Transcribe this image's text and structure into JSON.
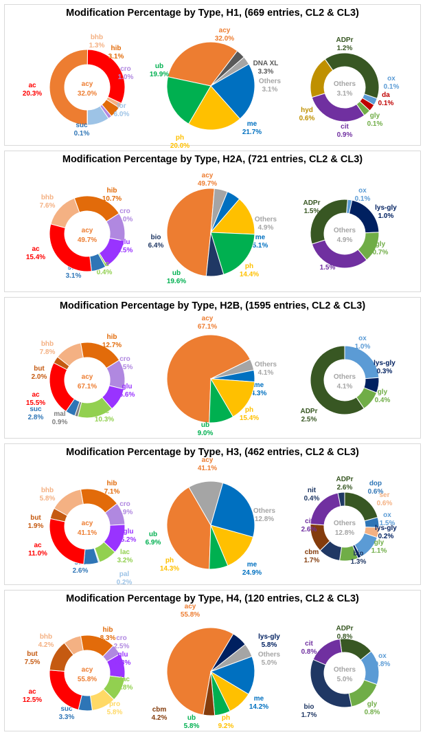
{
  "chart_data": [
    {
      "title": "Modification Percentage by Type, H1, (669 entries, CL2 & CL3)",
      "charts": [
        {
          "type": "donut",
          "center_name": "acy",
          "center_value": "32.0%",
          "center_color": "#ed7d31",
          "slices": [
            {
              "name": "acy",
              "value": 32.0,
              "label": "",
              "color": "#ed7d31"
            },
            {
              "name": "ac",
              "value": 20.3,
              "label": "20.3%",
              "color": "#ff0000"
            },
            {
              "name": "bhb",
              "value": 1.3,
              "label": "1.3%",
              "color": "#f4b183"
            },
            {
              "name": "hib",
              "value": 3.1,
              "label": "3.1%",
              "color": "#e26b0a"
            },
            {
              "name": "cro",
              "value": 1.0,
              "label": "1.0%",
              "color": "#b088e0"
            },
            {
              "name": "for",
              "value": 6.0,
              "label": "6.0%",
              "color": "#9dc3e6"
            },
            {
              "name": "suc",
              "value": 0.1,
              "label": "0.1%",
              "color": "#2e75b6"
            }
          ]
        },
        {
          "type": "pie",
          "slices": [
            {
              "name": "acy",
              "value": 32.0,
              "label": "32.0%",
              "color": "#ed7d31"
            },
            {
              "name": "DNA XL",
              "value": 3.3,
              "label": "3.3%",
              "color": "#595959"
            },
            {
              "name": "Others",
              "value": 3.1,
              "label": "3.1%",
              "color": "#a5a5a5"
            },
            {
              "name": "me",
              "value": 21.7,
              "label": "21.7%",
              "color": "#0070c0"
            },
            {
              "name": "ph",
              "value": 20.0,
              "label": "20.0%",
              "color": "#ffc000"
            },
            {
              "name": "ub",
              "value": 19.9,
              "label": "19.9%",
              "color": "#00b050"
            }
          ]
        },
        {
          "type": "donut",
          "center_name": "Others",
          "center_value": "3.1%",
          "center_color": "#a5a5a5",
          "slices": [
            {
              "name": "ADPr",
              "value": 1.2,
              "label": "1.2%",
              "color": "#385723"
            },
            {
              "name": "ox",
              "value": 0.1,
              "label": "0.1%",
              "color": "#5b9bd5"
            },
            {
              "name": "da",
              "value": 0.1,
              "label": "0.1%",
              "color": "#c00000"
            },
            {
              "name": "gly",
              "value": 0.1,
              "label": "0.1%",
              "color": "#70ad47"
            },
            {
              "name": "cit",
              "value": 0.9,
              "label": "0.9%",
              "color": "#7030a0"
            },
            {
              "name": "hyd",
              "value": 0.6,
              "label": "0.6%",
              "color": "#bf9000"
            }
          ]
        }
      ]
    },
    {
      "title": "Modification Percentage by Type, H2A, (721 entries, CL2 & CL3)",
      "charts": [
        {
          "type": "donut",
          "center_name": "acy",
          "center_value": "49.7%",
          "center_color": "#ed7d31",
          "slices": [
            {
              "name": "hib",
              "value": 10.7,
              "label": "10.7%",
              "color": "#e26b0a"
            },
            {
              "name": "cro",
              "value": 6.0,
              "label": "6.0%",
              "color": "#b088e0"
            },
            {
              "name": "glu",
              "value": 6.5,
              "label": "6.5%",
              "color": "#9933ff"
            },
            {
              "name": "lac",
              "value": 0.4,
              "label": "0.4%",
              "color": "#92d050"
            },
            {
              "name": "suc",
              "value": 3.1,
              "label": "3.1%",
              "color": "#2e75b6"
            },
            {
              "name": "ac",
              "value": 15.4,
              "label": "15.4%",
              "color": "#ff0000"
            },
            {
              "name": "bhb",
              "value": 7.6,
              "label": "7.6%",
              "color": "#f4b183"
            }
          ]
        },
        {
          "type": "pie",
          "slices": [
            {
              "name": "acy",
              "value": 49.7,
              "label": "49.7%",
              "color": "#ed7d31"
            },
            {
              "name": "Others",
              "value": 4.9,
              "label": "4.9%",
              "color": "#a5a5a5"
            },
            {
              "name": "me",
              "value": 5.1,
              "label": "5.1%",
              "color": "#0070c0"
            },
            {
              "name": "ph",
              "value": 14.4,
              "label": "14.4%",
              "color": "#ffc000"
            },
            {
              "name": "ub",
              "value": 19.6,
              "label": "19.6%",
              "color": "#00b050"
            },
            {
              "name": "bio",
              "value": 6.4,
              "label": "6.4%",
              "color": "#203864"
            }
          ]
        },
        {
          "type": "donut",
          "center_name": "Others",
          "center_value": "4.9%",
          "center_color": "#a5a5a5",
          "slices": [
            {
              "name": "ox",
              "value": 0.1,
              "label": "0.1%",
              "color": "#5b9bd5"
            },
            {
              "name": "lys-gly",
              "value": 1.0,
              "label": "1.0%",
              "color": "#002060"
            },
            {
              "name": "gly",
              "value": 0.7,
              "label": "0.7%",
              "color": "#70ad47"
            },
            {
              "name": "cit",
              "value": 1.5,
              "label": "1.5%",
              "color": "#7030a0"
            },
            {
              "name": "ADPr",
              "value": 1.5,
              "label": "1.5%",
              "color": "#385723"
            }
          ]
        }
      ]
    },
    {
      "title": "Modification Percentage by Type, H2B, (1595 entries, CL2 & CL3)",
      "charts": [
        {
          "type": "donut",
          "center_name": "acy",
          "center_value": "67.1%",
          "center_color": "#ed7d31",
          "slices": [
            {
              "name": "hib",
              "value": 12.7,
              "label": "12.7%",
              "color": "#e26b0a"
            },
            {
              "name": "cro",
              "value": 8.5,
              "label": "8.5%",
              "color": "#b088e0"
            },
            {
              "name": "glu",
              "value": 6.6,
              "label": "6.6%",
              "color": "#9933ff"
            },
            {
              "name": "lac",
              "value": 10.3,
              "label": "10.3%",
              "color": "#92d050"
            },
            {
              "name": "mal",
              "value": 0.9,
              "label": "0.9%",
              "color": "#7f7f7f"
            },
            {
              "name": "suc",
              "value": 2.8,
              "label": "2.8%",
              "color": "#2e75b6"
            },
            {
              "name": "ac",
              "value": 15.5,
              "label": "15.5%",
              "color": "#ff0000"
            },
            {
              "name": "but",
              "value": 2.0,
              "label": "2.0%",
              "color": "#c55a11"
            },
            {
              "name": "bhb",
              "value": 7.8,
              "label": "7.8%",
              "color": "#f4b183"
            }
          ]
        },
        {
          "type": "pie",
          "slices": [
            {
              "name": "acy",
              "value": 67.1,
              "label": "67.1%",
              "color": "#ed7d31"
            },
            {
              "name": "Others",
              "value": 4.1,
              "label": "4.1%",
              "color": "#a5a5a5"
            },
            {
              "name": "me",
              "value": 4.3,
              "label": "4.3%",
              "color": "#0070c0"
            },
            {
              "name": "ph",
              "value": 15.4,
              "label": "15.4%",
              "color": "#ffc000"
            },
            {
              "name": "ub",
              "value": 9.0,
              "label": "9.0%",
              "color": "#00b050"
            }
          ]
        },
        {
          "type": "donut",
          "center_name": "Others",
          "center_value": "4.1%",
          "center_color": "#a5a5a5",
          "slices": [
            {
              "name": "ox",
              "value": 1.0,
              "label": "1.0%",
              "color": "#5b9bd5"
            },
            {
              "name": "lys-gly",
              "value": 0.3,
              "label": "0.3%",
              "color": "#002060"
            },
            {
              "name": "gly",
              "value": 0.4,
              "label": "0.4%",
              "color": "#70ad47"
            },
            {
              "name": "ADPr",
              "value": 2.5,
              "label": "2.5%",
              "color": "#385723"
            }
          ]
        }
      ]
    },
    {
      "title": "Modification Percentage by Type, H3, (462 entries, CL2 & CL3)",
      "charts": [
        {
          "type": "donut",
          "center_name": "acy",
          "center_value": "41.1%",
          "center_color": "#ed7d31",
          "slices": [
            {
              "name": "hib",
              "value": 7.1,
              "label": "7.1%",
              "color": "#e26b0a"
            },
            {
              "name": "cro",
              "value": 3.9,
              "label": "3.9%",
              "color": "#b088e0"
            },
            {
              "name": "glu",
              "value": 5.2,
              "label": "5.2%",
              "color": "#9933ff"
            },
            {
              "name": "lac",
              "value": 3.2,
              "label": "3.2%",
              "color": "#92d050"
            },
            {
              "name": "pal",
              "value": 0.2,
              "label": "0.2%",
              "color": "#9dc3e6"
            },
            {
              "name": "suc",
              "value": 2.6,
              "label": "2.6%",
              "color": "#2e75b6"
            },
            {
              "name": "ac",
              "value": 11.0,
              "label": "11.0%",
              "color": "#ff0000"
            },
            {
              "name": "but",
              "value": 1.9,
              "label": "1.9%",
              "color": "#c55a11"
            },
            {
              "name": "bhb",
              "value": 5.8,
              "label": "5.8%",
              "color": "#f4b183"
            }
          ]
        },
        {
          "type": "pie",
          "slices": [
            {
              "name": "acy",
              "value": 41.1,
              "label": "41.1%",
              "color": "#ed7d31"
            },
            {
              "name": "Others",
              "value": 12.8,
              "label": "12.8%",
              "color": "#a5a5a5"
            },
            {
              "name": "me",
              "value": 24.9,
              "label": "24.9%",
              "color": "#0070c0"
            },
            {
              "name": "ph",
              "value": 14.3,
              "label": "14.3%",
              "color": "#ffc000"
            },
            {
              "name": "ub",
              "value": 6.9,
              "label": "6.9%",
              "color": "#00b050"
            }
          ]
        },
        {
          "type": "donut",
          "center_name": "Others",
          "center_value": "12.8%",
          "center_color": "#a5a5a5",
          "slices": [
            {
              "name": "ADPr",
              "value": 2.6,
              "label": "2.6%",
              "color": "#385723"
            },
            {
              "name": "dop",
              "value": 0.6,
              "label": "0.6%",
              "color": "#2e75b6"
            },
            {
              "name": "ser",
              "value": 0.6,
              "label": "0.6%",
              "color": "#f4b183"
            },
            {
              "name": "ox",
              "value": 1.5,
              "label": "1.5%",
              "color": "#5b9bd5"
            },
            {
              "name": "lys-gly",
              "value": 0.2,
              "label": "0.2%",
              "color": "#002060"
            },
            {
              "name": "gly",
              "value": 1.1,
              "label": "1.1%",
              "color": "#70ad47"
            },
            {
              "name": "bio",
              "value": 1.3,
              "label": "1.3%",
              "color": "#203864"
            },
            {
              "name": "cbm",
              "value": 1.7,
              "label": "1.7%",
              "color": "#843c0c"
            },
            {
              "name": "cit",
              "value": 2.6,
              "label": "2.6%",
              "color": "#7030a0"
            },
            {
              "name": "nit",
              "value": 0.4,
              "label": "0.4%",
              "color": "#1f3864"
            }
          ]
        }
      ]
    },
    {
      "title": "Modification Percentage by Type, H4, (120 entries, CL2 & CL3)",
      "charts": [
        {
          "type": "donut",
          "center_name": "acy",
          "center_value": "55.8%",
          "center_color": "#ed7d31",
          "slices": [
            {
              "name": "hib",
              "value": 8.3,
              "label": "8.3%",
              "color": "#e26b0a"
            },
            {
              "name": "cro",
              "value": 2.5,
              "label": "2.5%",
              "color": "#b088e0"
            },
            {
              "name": "glu",
              "value": 5.8,
              "label": "5.8%",
              "color": "#9933ff"
            },
            {
              "name": "lac",
              "value": 5.8,
              "label": "5.8%",
              "color": "#92d050"
            },
            {
              "name": "pro",
              "value": 5.8,
              "label": "5.8%",
              "color": "#ffd966"
            },
            {
              "name": "suc",
              "value": 3.3,
              "label": "3.3%",
              "color": "#2e75b6"
            },
            {
              "name": "ac",
              "value": 12.5,
              "label": "12.5%",
              "color": "#ff0000"
            },
            {
              "name": "but",
              "value": 7.5,
              "label": "7.5%",
              "color": "#c55a11"
            },
            {
              "name": "bhb",
              "value": 4.2,
              "label": "4.2%",
              "color": "#f4b183"
            }
          ]
        },
        {
          "type": "pie",
          "slices": [
            {
              "name": "acy",
              "value": 55.8,
              "label": "55.8%",
              "color": "#ed7d31"
            },
            {
              "name": "lys-gly",
              "value": 5.8,
              "label": "5.8%",
              "color": "#002060"
            },
            {
              "name": "Others",
              "value": 5.0,
              "label": "5.0%",
              "color": "#a5a5a5"
            },
            {
              "name": "me",
              "value": 14.2,
              "label": "14.2%",
              "color": "#0070c0"
            },
            {
              "name": "ph",
              "value": 9.2,
              "label": "9.2%",
              "color": "#ffc000"
            },
            {
              "name": "ub",
              "value": 5.8,
              "label": "5.8%",
              "color": "#00b050"
            },
            {
              "name": "cbm",
              "value": 4.2,
              "label": "4.2%",
              "color": "#843c0c"
            }
          ]
        },
        {
          "type": "donut",
          "center_name": "Others",
          "center_value": "5.0%",
          "center_color": "#a5a5a5",
          "slices": [
            {
              "name": "ADPr",
              "value": 0.8,
              "label": "0.8%",
              "color": "#385723"
            },
            {
              "name": "ox",
              "value": 0.8,
              "label": "0.8%",
              "color": "#5b9bd5"
            },
            {
              "name": "gly",
              "value": 0.8,
              "label": "0.8%",
              "color": "#70ad47"
            },
            {
              "name": "bio",
              "value": 1.7,
              "label": "1.7%",
              "color": "#203864"
            },
            {
              "name": "cit",
              "value": 0.8,
              "label": "0.8%",
              "color": "#7030a0"
            }
          ]
        }
      ]
    }
  ]
}
